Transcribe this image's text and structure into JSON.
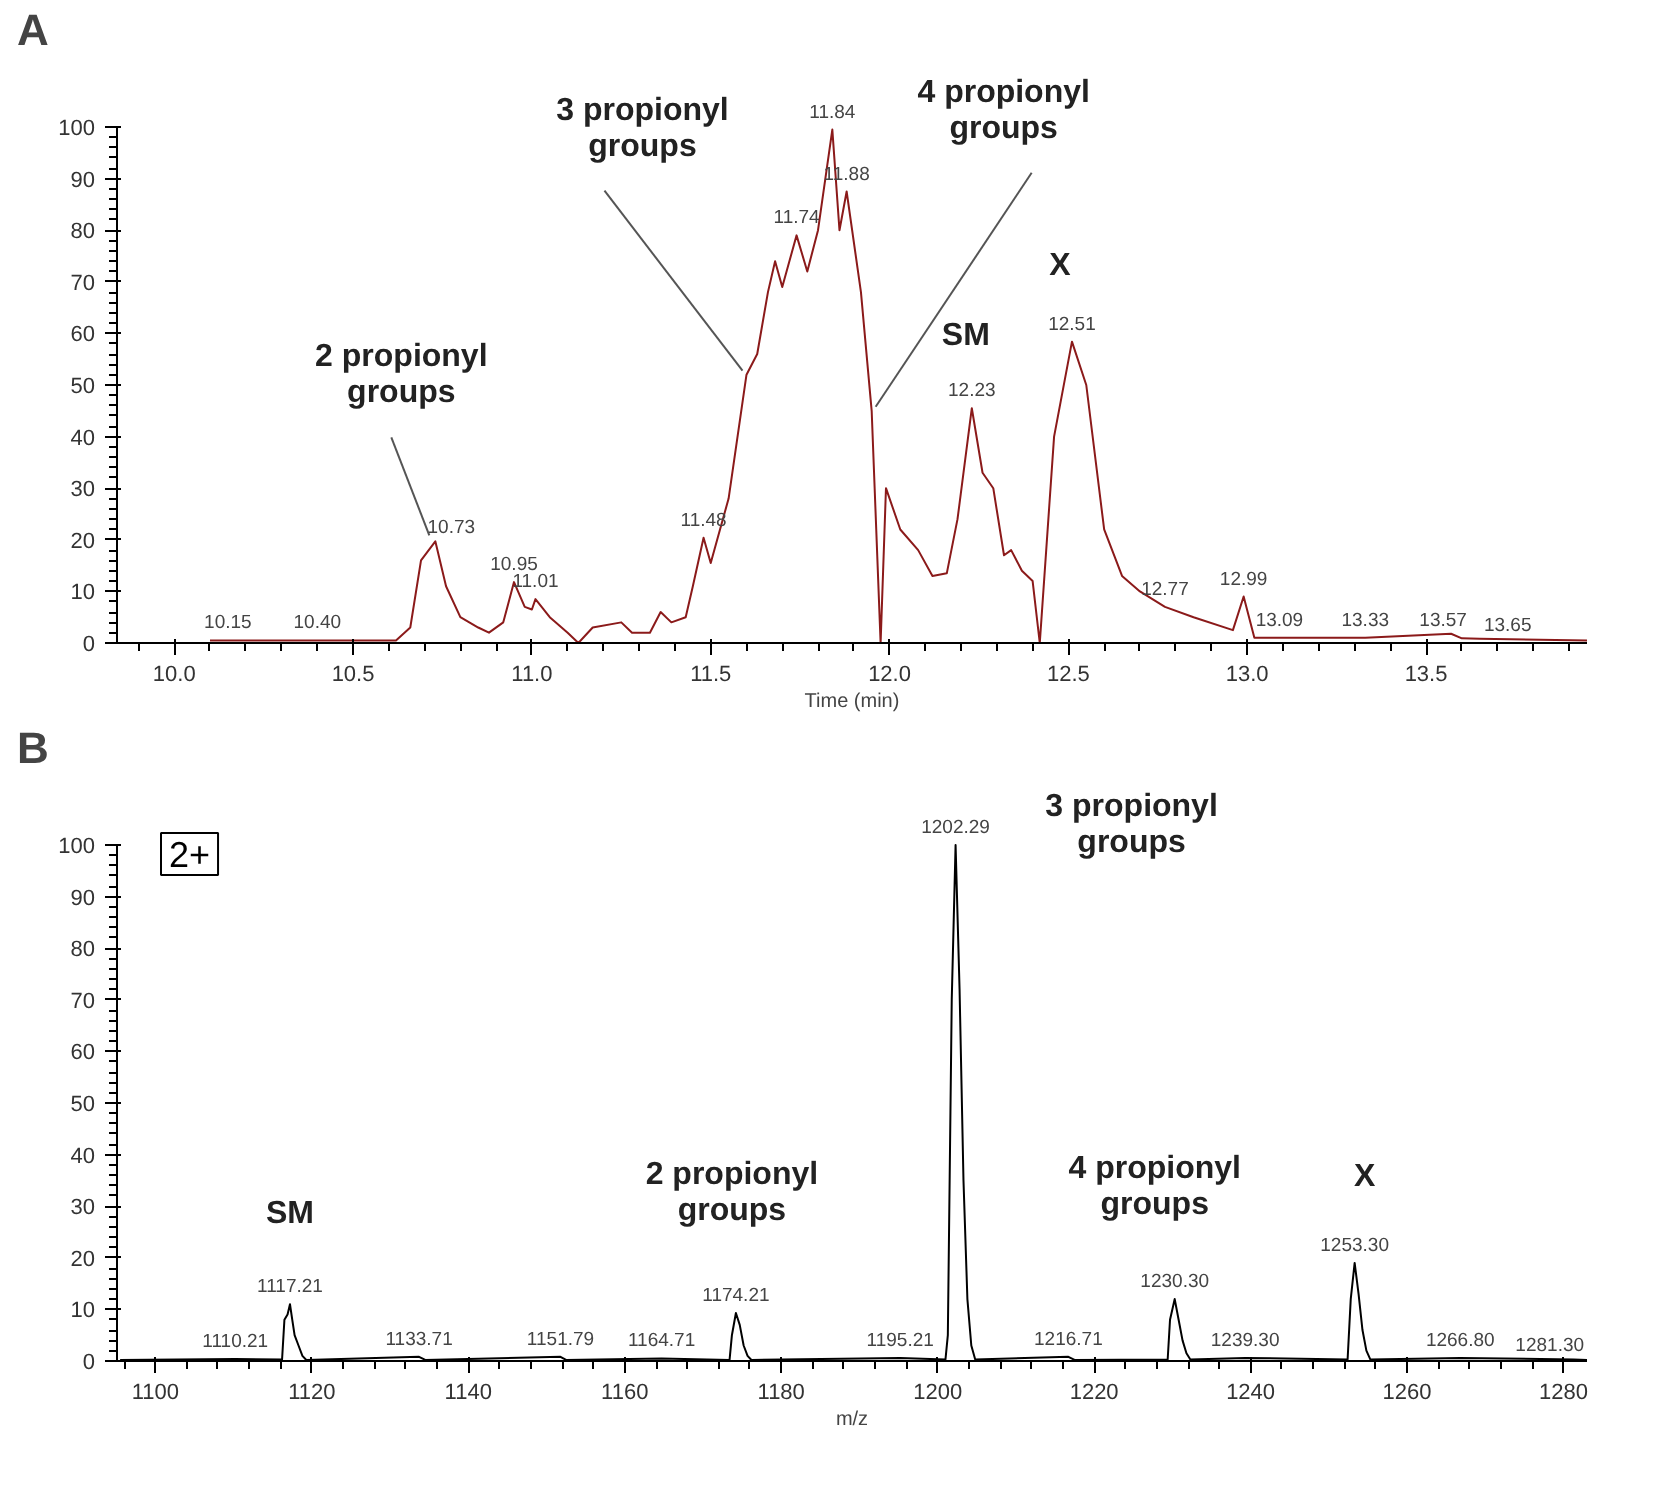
{
  "chart_data": [
    {
      "type": "line",
      "title": "A",
      "xlabel": "Time (min)",
      "xlim": [
        9.84,
        13.95
      ],
      "ylim": [
        0,
        100
      ],
      "xticks": [
        {
          "value": 10,
          "label": "10.0"
        },
        {
          "value": 10.5,
          "label": "10.5"
        },
        {
          "value": 11,
          "label": "11.0"
        },
        {
          "value": 11.5,
          "label": "11.5"
        },
        {
          "value": 12,
          "label": "12.0"
        },
        {
          "value": 12.5,
          "label": "12.5"
        },
        {
          "value": 13,
          "label": "13.0"
        },
        {
          "value": 13.5,
          "label": "13.5"
        }
      ],
      "yticks": [
        0,
        10,
        20,
        30,
        40,
        50,
        60,
        70,
        80,
        90,
        100
      ],
      "line_style": "solid",
      "series": [
        {
          "color": "#8b1a1a",
          "x": [
            10.1,
            10.15,
            10.4,
            10.62,
            10.66,
            10.69,
            10.73,
            10.76,
            10.8,
            10.85,
            10.88,
            10.92,
            10.95,
            10.98,
            11.0,
            11.01,
            11.05,
            11.1,
            11.13,
            11.17,
            11.25,
            11.28,
            11.33,
            11.36,
            11.39,
            11.43,
            11.45,
            11.48,
            11.5,
            11.55,
            11.6,
            11.63,
            11.66,
            11.68,
            11.7,
            11.74,
            11.77,
            11.8,
            11.84,
            11.86,
            11.88,
            11.92,
            11.95,
            11.975,
            11.99,
            12.03,
            12.08,
            12.12,
            12.16,
            12.19,
            12.23,
            12.26,
            12.29,
            12.32,
            12.34,
            12.37,
            12.4,
            12.42,
            12.46,
            12.51,
            12.55,
            12.6,
            12.65,
            12.7,
            12.77,
            12.85,
            12.96,
            12.99,
            13.02,
            13.09,
            13.33,
            13.57,
            13.6,
            13.65,
            13.95
          ],
          "values": [
            0.5,
            0.5,
            0.5,
            0.5,
            3,
            16,
            19.7,
            11,
            5,
            3,
            2,
            4,
            11.8,
            7,
            6.5,
            8.5,
            5,
            2,
            0,
            3,
            4,
            2,
            2,
            6,
            4,
            5,
            11,
            20.4,
            15.5,
            28,
            52,
            56,
            68,
            74,
            69,
            79,
            72,
            80,
            99.5,
            80,
            87.5,
            68,
            45,
            0,
            30,
            22,
            18,
            13,
            13.5,
            24,
            45.5,
            33,
            30,
            17,
            18,
            14,
            12,
            0,
            40,
            58.4,
            50,
            22,
            13,
            10,
            7,
            5,
            2.5,
            9,
            1,
            1,
            1,
            1.8,
            0.9,
            0.8,
            0.5
          ]
        }
      ],
      "annotations": [
        {
          "text": "10.15",
          "x": 10.15,
          "y": 0.5
        },
        {
          "text": "10.40",
          "x": 10.4,
          "y": 0.5
        },
        {
          "text": "10.73",
          "x": 10.73,
          "y": 19.7
        },
        {
          "text": "10.95",
          "x": 10.95,
          "y": 11.8
        },
        {
          "text": "11.01",
          "x": 11.01,
          "y": 8.5
        },
        {
          "text": "11.48",
          "x": 11.48,
          "y": 20.4
        },
        {
          "text": "11.74",
          "x": 11.74,
          "y": 79
        },
        {
          "text": "11.84",
          "x": 11.84,
          "y": 99.5
        },
        {
          "text": "11.88",
          "x": 11.88,
          "y": 87.5
        },
        {
          "text": "12.23",
          "x": 12.23,
          "y": 45.5
        },
        {
          "text": "12.51",
          "x": 12.51,
          "y": 58.4
        },
        {
          "text": "12.77",
          "x": 12.77,
          "y": 7
        },
        {
          "text": "12.99",
          "x": 12.99,
          "y": 9
        },
        {
          "text": "13.09",
          "x": 13.09,
          "y": 1
        },
        {
          "text": "13.33",
          "x": 13.33,
          "y": 1
        },
        {
          "text": "13.57",
          "x": 13.57,
          "y": 1.8
        },
        {
          "text": "13.65",
          "x": 13.65,
          "y": 0.8
        },
        {
          "text": "2 propionyl\ngroups",
          "x": 10.73,
          "y": 19.7
        },
        {
          "text": "3 propionyl\ngroups",
          "x": 11.6,
          "y": 52
        },
        {
          "text": "4 propionyl\ngroups",
          "x": 11.95,
          "y": 45
        },
        {
          "text": "SM",
          "x": 12.23,
          "y": 45.5
        },
        {
          "text": "X",
          "x": 12.51,
          "y": 58.4
        }
      ]
    },
    {
      "type": "line",
      "title": "B",
      "xlabel": "m/z",
      "xlim": [
        1095.1,
        1283
      ],
      "ylim": [
        0,
        100
      ],
      "xticks": [
        1100,
        1120,
        1140,
        1160,
        1180,
        1200,
        1220,
        1240,
        1260,
        1280
      ],
      "yticks": [
        0,
        10,
        20,
        30,
        40,
        50,
        60,
        70,
        80,
        90,
        100
      ],
      "line_style": "solid",
      "series": [
        {
          "color": "#000000",
          "x": [
            1095.5,
            1110.21,
            1116.2,
            1116.5,
            1116.9,
            1117.21,
            1117.5,
            1117.8,
            1118.3,
            1118.8,
            1119.3,
            1133.71,
            1134.5,
            1151.79,
            1152.5,
            1164.71,
            1173.4,
            1173.7,
            1174.21,
            1174.7,
            1175.2,
            1175.7,
            1176.2,
            1195.21,
            1201.0,
            1201.3,
            1201.8,
            1202.29,
            1202.8,
            1203.3,
            1203.8,
            1204.3,
            1204.8,
            1216.71,
            1217.5,
            1229.4,
            1229.7,
            1230.3,
            1230.8,
            1231.3,
            1231.8,
            1232.3,
            1239.3,
            1252.4,
            1252.8,
            1253.3,
            1253.8,
            1254.3,
            1254.8,
            1255.3,
            1266.8,
            1281.3,
            1283
          ],
          "values": [
            0.2,
            0.4,
            0.3,
            8,
            9,
            11,
            8,
            5,
            3,
            1,
            0.2,
            0.8,
            0.2,
            0.8,
            0.2,
            0.5,
            0.2,
            5,
            9.3,
            7,
            3,
            1,
            0.2,
            0.6,
            0.3,
            5,
            70,
            100,
            72,
            35,
            12,
            3,
            0.3,
            0.8,
            0.2,
            0.3,
            8,
            12,
            8,
            4,
            1.5,
            0.3,
            0.6,
            0.3,
            12,
            19,
            13,
            6,
            2,
            0.3,
            0.6,
            0.3,
            0.2
          ]
        }
      ],
      "annotations": [
        {
          "text": "1110.21",
          "x": 1110.21,
          "y": 0.4
        },
        {
          "text": "1117.21",
          "x": 1117.21,
          "y": 11
        },
        {
          "text": "1133.71",
          "x": 1133.71,
          "y": 0.8
        },
        {
          "text": "1151.79",
          "x": 1151.79,
          "y": 0.8
        },
        {
          "text": "1164.71",
          "x": 1164.71,
          "y": 0.5
        },
        {
          "text": "1174.21",
          "x": 1174.21,
          "y": 9.3
        },
        {
          "text": "1195.21",
          "x": 1195.21,
          "y": 0.6
        },
        {
          "text": "1202.29",
          "x": 1202.29,
          "y": 100
        },
        {
          "text": "1216.71",
          "x": 1216.71,
          "y": 0.8
        },
        {
          "text": "1230.30",
          "x": 1230.3,
          "y": 12
        },
        {
          "text": "1239.30",
          "x": 1239.3,
          "y": 0.6
        },
        {
          "text": "1253.30",
          "x": 1253.3,
          "y": 19
        },
        {
          "text": "1266.80",
          "x": 1266.8,
          "y": 0.6
        },
        {
          "text": "1281.30",
          "x": 1281.3,
          "y": 0.3
        },
        {
          "text": "SM",
          "x": 1117.21,
          "y": 11
        },
        {
          "text": "2 propionyl\ngroups",
          "x": 1174.21,
          "y": 9.3
        },
        {
          "text": "3 propionyl\ngroups",
          "x": 1202.29,
          "y": 100
        },
        {
          "text": "4 propionyl\ngroups",
          "x": 1230.3,
          "y": 12
        },
        {
          "text": "X",
          "x": 1253.3,
          "y": 19
        },
        "2+"
      ]
    }
  ]
}
